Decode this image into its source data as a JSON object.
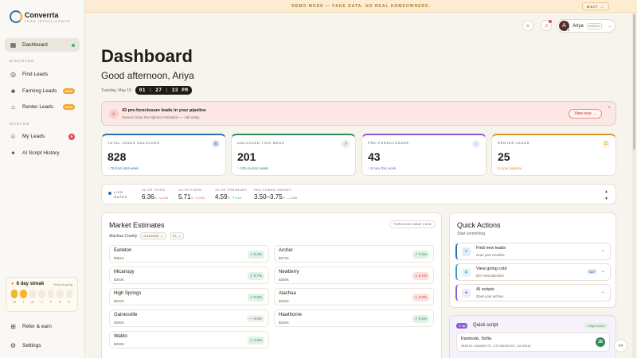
{
  "brand": {
    "name": "Converrta",
    "tagline": "LEAD INTELLIGENCE"
  },
  "sidebar": {
    "dashboard": "Dashboard",
    "discover_label": "DISCOVER",
    "find_leads": "Find Leads",
    "farming_leads": "Farming Leads",
    "renter_leads": "Renter Leads",
    "new_badge": "NEW",
    "manage_label": "MANAGE",
    "my_leads": "My Leads",
    "my_leads_count": "6",
    "ai_history": "AI Script History",
    "refer": "Refer & earn",
    "settings": "Settings"
  },
  "streak": {
    "title": "8 day streak",
    "keep": "Keep it going",
    "days_active": 2,
    "days": [
      "M",
      "T",
      "W",
      "T",
      "F",
      "S",
      "S"
    ]
  },
  "banner": {
    "text": "DEMO MODE — FAKE DATA. NO REAL HOMEOWNERS.",
    "exit": "EXIT →"
  },
  "user": {
    "initial": "A",
    "name": "Ariya",
    "role": "ADMIN"
  },
  "header": {
    "title": "Dashboard",
    "greeting": "Good afternoon, Ariya",
    "date": "Tuesday, May 19",
    "clock": "01 : 27 : 33 PM"
  },
  "alert": {
    "title": "43 pre-foreclosure leads in your pipeline",
    "subtitle": "Owners have the highest motivation — call today.",
    "button": "View now →"
  },
  "stats": [
    {
      "label": "TOTAL LEADS UNLOCKED",
      "value": "828",
      "sub": "↑ 76 from last week",
      "color": "#2d6fb3"
    },
    {
      "label": "UNLOCKED THIS WEEK",
      "value": "201",
      "sub": "↑ 125 vs prior week",
      "color": "#2f8a55"
    },
    {
      "label": "PRE-FORECLOSURE",
      "value": "43",
      "sub": "↑ 8 new this week",
      "color": "#8b5cd6"
    },
    {
      "label": "RENTER LEADS",
      "value": "25",
      "sub": "In your pipeline",
      "color": "#d9961f"
    }
  ],
  "rates": {
    "live_line1": "LIVE",
    "live_line2": "RATES",
    "items": [
      {
        "label": "30-YR FIXED",
        "value": "6.36",
        "unit": "%",
        "change": "↘ 0.01",
        "dir": "dn"
      },
      {
        "label": "15-YR FIXED",
        "value": "5.71",
        "unit": "%",
        "change": "↘ 0.01",
        "dir": "dn"
      },
      {
        "label": "10-YR TREASURY",
        "value": "4.59",
        "unit": "%",
        "change": "↗ 0.12",
        "dir": "up"
      },
      {
        "label": "FED FUNDS TARGET",
        "value": "3.50–3.75",
        "unit": "%",
        "change": "— 0.00",
        "dir": "fl"
      }
    ]
  },
  "market": {
    "title": "Market Estimates",
    "through": "THROUGH MAR 2026",
    "county": "Alachua County",
    "chip1": "CHANGE ⌄",
    "chip2": "FL ⌄",
    "rows": [
      {
        "name": "Earleton",
        "price": "$381K",
        "change": "↗ 0.4%",
        "dir": "up"
      },
      {
        "name": "Archer",
        "price": "$372K",
        "change": "↗ 0.3%",
        "dir": "up"
      },
      {
        "name": "Micanopy",
        "price": "$340K",
        "change": "↗ 0.7%",
        "dir": "up"
      },
      {
        "name": "Newberry",
        "price": "$350K",
        "change": "↘ 0.1%",
        "dir": "dn"
      },
      {
        "name": "High Springs",
        "price": "$332K",
        "change": "↗ 0.6%",
        "dir": "up"
      },
      {
        "name": "Alachua",
        "price": "$332K",
        "change": "↘ 0.3%",
        "dir": "dn"
      },
      {
        "name": "Gainesville",
        "price": "$300K",
        "change": "— 0.0%",
        "dir": "fl"
      },
      {
        "name": "Hawthorne",
        "price": "$252K",
        "change": "↗ 0.5%",
        "dir": "up"
      },
      {
        "name": "Waldo",
        "price": "$208K",
        "change": "↗ 1.5%",
        "dir": "up"
      }
    ]
  },
  "quick_actions": {
    "title": "Quick Actions",
    "subtitle": "Start something.",
    "items": [
      {
        "name": "Find new leads",
        "desc": "Scan your counties",
        "icon": "search-icon",
        "color": "#2d6fb3"
      },
      {
        "name": "View going cold",
        "desc": "627 need attention",
        "icon": "snowflake-icon",
        "color": "#3aa0c9",
        "count": "627"
      },
      {
        "name": "AI scripts",
        "desc": "Open your archive",
        "icon": "sparkle-icon",
        "color": "#8b5cd6"
      }
    ]
  },
  "quick_script": {
    "tag": "✦ AI",
    "title": "Quick script",
    "pill": "• High scorer",
    "name": "Kaminski, Sofia",
    "address": "9845 EL CAMINO ST, LOS ANGELES, CA 90016",
    "score": "28"
  }
}
